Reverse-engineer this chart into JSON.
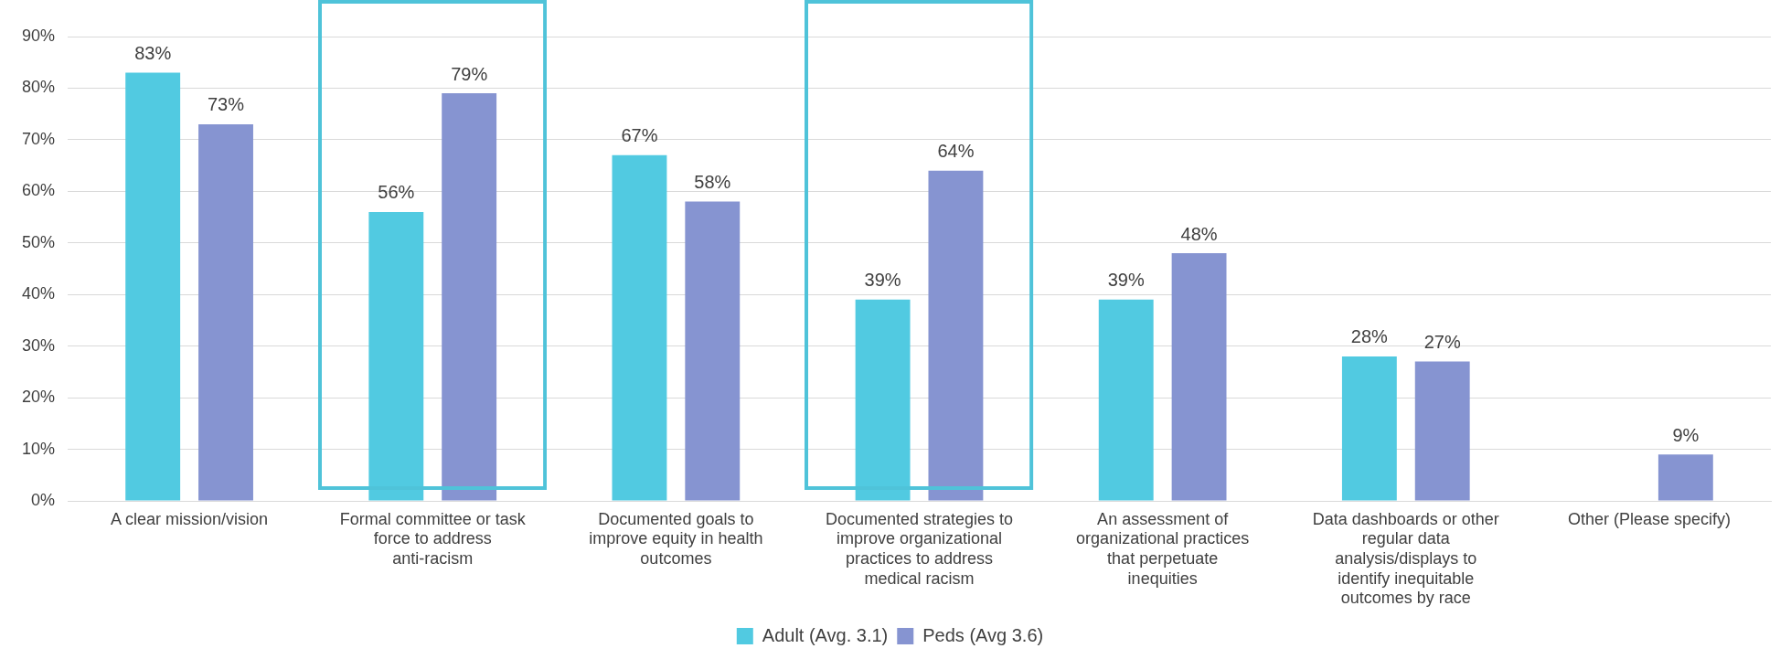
{
  "chart_data": {
    "type": "bar",
    "categories": [
      "A clear mission/vision",
      "Formal committee or task force to address anti-racism",
      "Documented goals to improve equity in health outcomes",
      "Documented strategies to improve organizational practices to address medical racism",
      "An assessment of organizational practices that perpetuate inequities",
      "Data dashboards or other regular data analysis/displays to identify inequitable outcomes by race",
      "Other (Please specify)"
    ],
    "series": [
      {
        "name": "Adult (Avg. 3.1)",
        "color": "#51cae1",
        "values": [
          83,
          56,
          67,
          39,
          39,
          28,
          null
        ],
        "value_labels": [
          "83%",
          "56%",
          "67%",
          "39%",
          "39%",
          "28%",
          null
        ]
      },
      {
        "name": "Peds (Avg 3.6)",
        "color": "#8694d1",
        "values": [
          73,
          79,
          58,
          64,
          48,
          27,
          9
        ],
        "value_labels": [
          "73%",
          "79%",
          "58%",
          "64%",
          "48%",
          "27%",
          "9%"
        ]
      }
    ],
    "ylim": [
      0,
      90
    ],
    "yticks": [
      {
        "value": 0,
        "label": "0%"
      },
      {
        "value": 10,
        "label": "10%"
      },
      {
        "value": 20,
        "label": "20%"
      },
      {
        "value": 30,
        "label": "30%"
      },
      {
        "value": 40,
        "label": "40%"
      },
      {
        "value": 50,
        "label": "50%"
      },
      {
        "value": 60,
        "label": "60%"
      },
      {
        "value": 70,
        "label": "70%"
      },
      {
        "value": 80,
        "label": "80%"
      },
      {
        "value": 90,
        "label": "90%"
      }
    ],
    "grid": "y",
    "legend": "bottom"
  }
}
